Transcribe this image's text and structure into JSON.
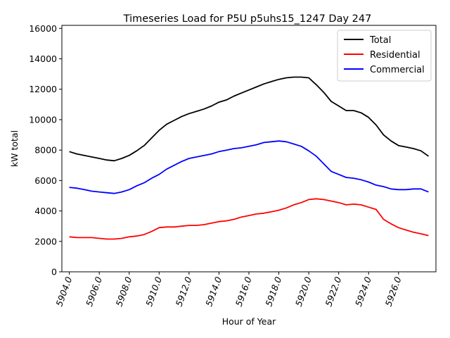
{
  "chart_data": {
    "type": "line",
    "title": "Timeseries Load for P5U p5uhs15_1247  Day 247",
    "xlabel": "Hour of Year",
    "ylabel": "kW total",
    "xlim": [
      5903.5,
      5928.5
    ],
    "ylim": [
      0,
      16200
    ],
    "x_ticks": [
      5904,
      5906,
      5908,
      5910,
      5912,
      5914,
      5916,
      5918,
      5920,
      5922,
      5924,
      5926
    ],
    "x_tick_labels": [
      "5904.0",
      "5906.0",
      "5908.0",
      "5910.0",
      "5912.0",
      "5914.0",
      "5916.0",
      "5918.0",
      "5920.0",
      "5922.0",
      "5924.0",
      "5926.0"
    ],
    "y_ticks": [
      0,
      2000,
      4000,
      6000,
      8000,
      10000,
      12000,
      14000,
      16000
    ],
    "y_tick_labels": [
      "0",
      "2000",
      "4000",
      "6000",
      "8000",
      "10000",
      "12000",
      "14000",
      "16000"
    ],
    "legend_position": "top-right",
    "x": [
      5904,
      5904.5,
      5905,
      5905.5,
      5906,
      5906.5,
      5907,
      5907.5,
      5908,
      5908.5,
      5909,
      5909.5,
      5910,
      5910.5,
      5911,
      5911.5,
      5912,
      5912.5,
      5913,
      5913.5,
      5914,
      5914.5,
      5915,
      5915.5,
      5916,
      5916.5,
      5917,
      5917.5,
      5918,
      5918.5,
      5919,
      5919.5,
      5920,
      5920.5,
      5921,
      5921.5,
      5922,
      5922.5,
      5923,
      5923.5,
      5924,
      5924.5,
      5925,
      5925.5,
      5926,
      5926.5,
      5927,
      5927.5,
      5928
    ],
    "series": [
      {
        "name": "Total",
        "color": "#000000",
        "values": [
          7900,
          7750,
          7650,
          7550,
          7450,
          7350,
          7300,
          7450,
          7650,
          7950,
          8300,
          8800,
          9300,
          9700,
          9950,
          10200,
          10400,
          10550,
          10700,
          10900,
          11150,
          11300,
          11550,
          11750,
          11950,
          12150,
          12350,
          12500,
          12650,
          12750,
          12800,
          12800,
          12750,
          12300,
          11800,
          11200,
          10900,
          10600,
          10600,
          10450,
          10150,
          9650,
          9000,
          8600,
          8300,
          8200,
          8100,
          7950,
          7600
        ]
      },
      {
        "name": "Residential",
        "color": "#ff0000",
        "values": [
          2300,
          2250,
          2250,
          2250,
          2200,
          2150,
          2150,
          2200,
          2300,
          2350,
          2450,
          2650,
          2900,
          2950,
          2950,
          3000,
          3050,
          3050,
          3100,
          3200,
          3300,
          3350,
          3450,
          3600,
          3700,
          3800,
          3850,
          3950,
          4050,
          4200,
          4400,
          4550,
          4750,
          4800,
          4750,
          4650,
          4550,
          4400,
          4450,
          4400,
          4250,
          4100,
          3450,
          3150,
          2900,
          2750,
          2600,
          2500,
          2380
        ]
      },
      {
        "name": "Commercial",
        "color": "#0000ff",
        "values": [
          5550,
          5500,
          5400,
          5300,
          5250,
          5200,
          5150,
          5250,
          5400,
          5650,
          5850,
          6150,
          6400,
          6750,
          7000,
          7250,
          7450,
          7550,
          7650,
          7750,
          7900,
          8000,
          8100,
          8150,
          8250,
          8350,
          8500,
          8550,
          8600,
          8550,
          8400,
          8250,
          7950,
          7600,
          7100,
          6600,
          6400,
          6200,
          6150,
          6050,
          5900,
          5700,
          5600,
          5450,
          5400,
          5400,
          5450,
          5450,
          5250
        ]
      }
    ]
  }
}
